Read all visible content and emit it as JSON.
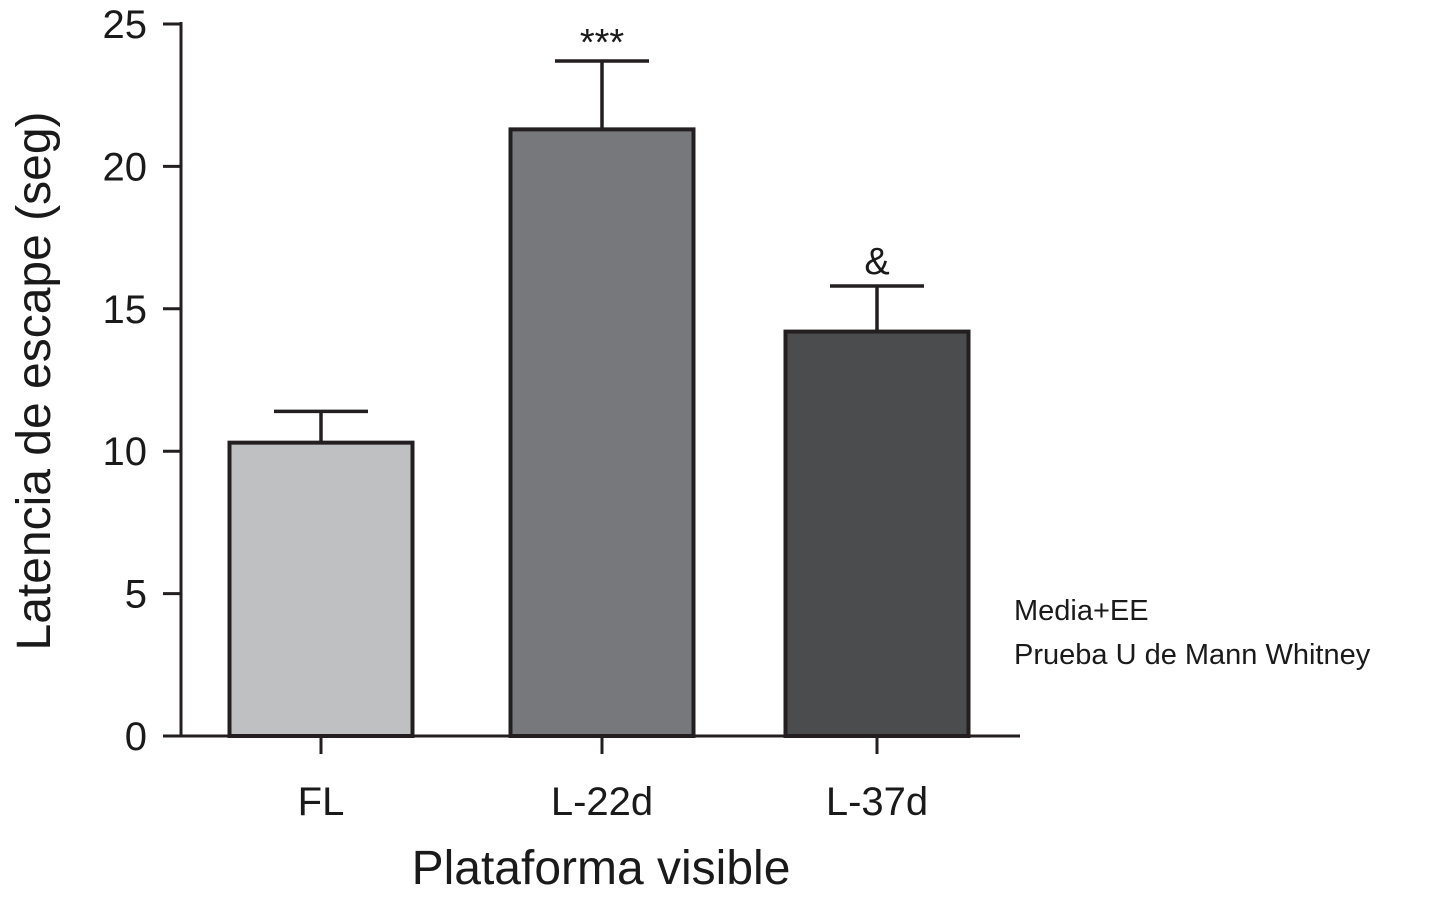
{
  "chart_data": {
    "type": "bar",
    "categories": [
      "FL",
      "L-22d",
      "L-37d"
    ],
    "values": [
      10.3,
      21.3,
      14.2
    ],
    "errors": [
      1.1,
      2.4,
      1.6
    ],
    "significance": [
      "",
      "***",
      "&"
    ],
    "colors": [
      "#bfc0c2",
      "#77787b",
      "#4b4c4e"
    ],
    "border_color": "#231f20",
    "xlabel": "Plataforma visible",
    "ylabel": "Latencia de escape (seg)",
    "ylim": [
      0,
      25
    ],
    "yticks": [
      0,
      5,
      10,
      15,
      20,
      25
    ],
    "grid": false,
    "notes": [
      "Media+EE",
      "Prueba U de Mann Whitney"
    ]
  }
}
